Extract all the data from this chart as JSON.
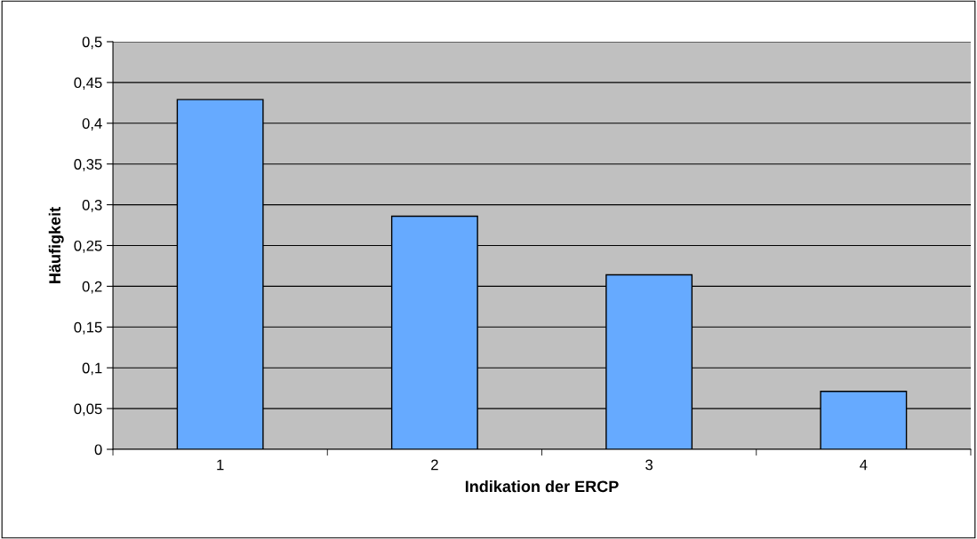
{
  "chart_data": {
    "type": "bar",
    "xlabel": "Indikation der ERCP",
    "ylabel": "Häufigkeit",
    "categories": [
      "1",
      "2",
      "3",
      "4"
    ],
    "series": [
      {
        "color": "#66aaff",
        "values": [
          0.429,
          0.286,
          0.214,
          0.071
        ]
      }
    ],
    "ylim": [
      0,
      0.5
    ],
    "yticks": [
      {
        "value": 0,
        "label": "0"
      },
      {
        "value": 0.05,
        "label": "0,05"
      },
      {
        "value": 0.1,
        "label": "0,1"
      },
      {
        "value": 0.15,
        "label": "0,15"
      },
      {
        "value": 0.2,
        "label": "0,2"
      },
      {
        "value": 0.25,
        "label": "0,25"
      },
      {
        "value": 0.3,
        "label": "0,3"
      },
      {
        "value": 0.35,
        "label": "0,35"
      },
      {
        "value": 0.4,
        "label": "0,4"
      },
      {
        "value": 0.45,
        "label": "0,45"
      },
      {
        "value": 0.5,
        "label": "0,5"
      }
    ],
    "grid": "y"
  }
}
